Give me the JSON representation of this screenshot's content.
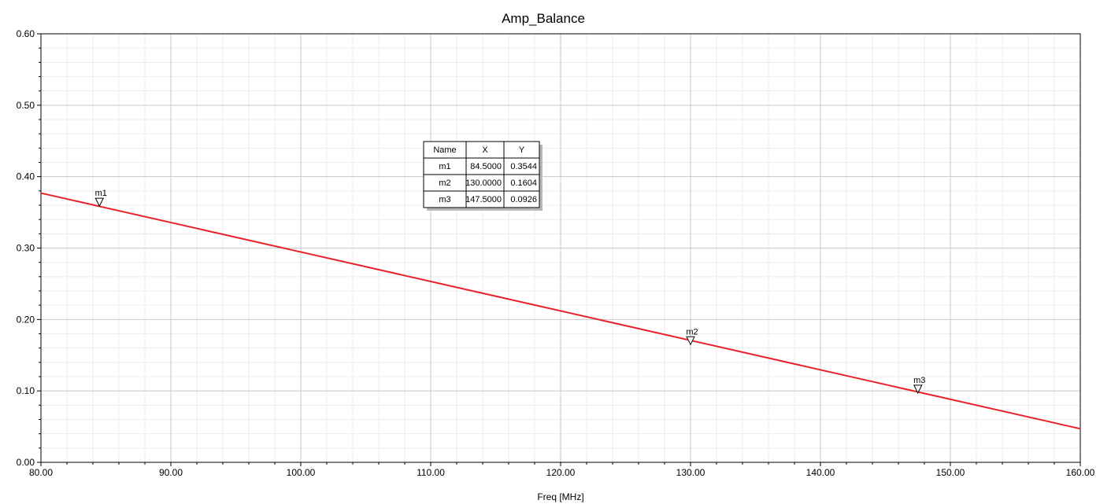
{
  "chart_data": {
    "type": "line",
    "title": "Amp_Balance",
    "xlabel": "Freq [MHz]",
    "ylabel": "",
    "xlim": [
      80,
      160
    ],
    "ylim": [
      0,
      0.6
    ],
    "x_ticks": [
      "80.00",
      "90.00",
      "100.00",
      "110.00",
      "120.00",
      "130.00",
      "140.00",
      "150.00",
      "160.00"
    ],
    "y_ticks": [
      "0.00",
      "0.10",
      "0.20",
      "0.30",
      "0.40",
      "0.50",
      "0.60"
    ],
    "x_tick_values": [
      80,
      90,
      100,
      110,
      120,
      130,
      140,
      150,
      160
    ],
    "y_tick_values": [
      0,
      0.1,
      0.2,
      0.3,
      0.4,
      0.5,
      0.6
    ],
    "grid": true,
    "series": [
      {
        "x": [
          80,
          160
        ],
        "y": [
          0.377,
          0.047
        ],
        "color": "#e8212a"
      }
    ],
    "markers": [
      {
        "name": "m1",
        "x": "84.5000",
        "y": "0.3544"
      },
      {
        "name": "m2",
        "x": "130.0000",
        "y": "0.1604"
      },
      {
        "name": "m3",
        "x": "147.5000",
        "y": "0.0926"
      }
    ],
    "marker_table": {
      "headers": [
        "Name",
        "X",
        "Y"
      ]
    }
  }
}
